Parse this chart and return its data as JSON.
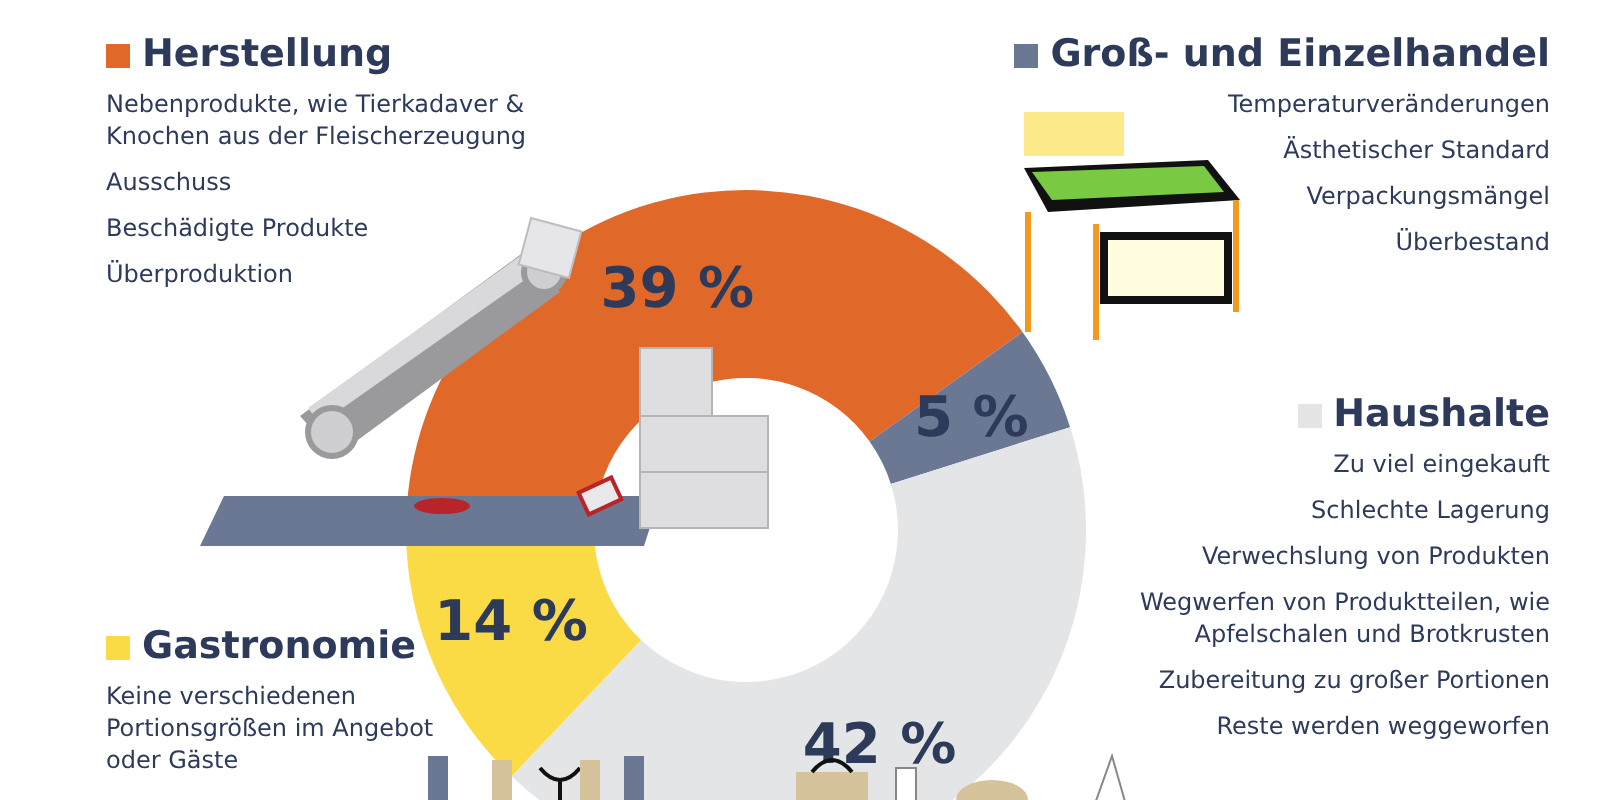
{
  "chart_data": {
    "type": "donut",
    "categories": [
      "Herstellung",
      "Groß- und Einzelhandel",
      "Haushalte",
      "Gastronomie"
    ],
    "values": [
      39,
      5,
      42,
      14
    ],
    "colors": [
      "#e0692a",
      "#6b7894",
      "#e4e5e7",
      "#fbdb45"
    ],
    "value_labels": [
      "39 %",
      "5 %",
      "42 %",
      "14 %"
    ],
    "annotations": [
      "Nebenprodukte, wie Tierkadaver & Knochen aus der Fleischerzeugung\nAusschuss\nBeschädigte Produkte\nÜberproduktion",
      "Temperaturveränderungen\nÄsthetischer Standard\nVerpackungsmängel\nÜberbestand",
      "Zu viel eingekauft\nSchlechte Lagerung\nVerwechslung von Produkten\nWegwerfen von Produktteilen, wie Apfelschalen und Brotkrusten\nZubereitung zu großer Portionen\nReste werden weggeworfen",
      "Keine verschiedenen Portionsgrößen im Angebot oder Gäste"
    ],
    "legend": "top"
  }
}
